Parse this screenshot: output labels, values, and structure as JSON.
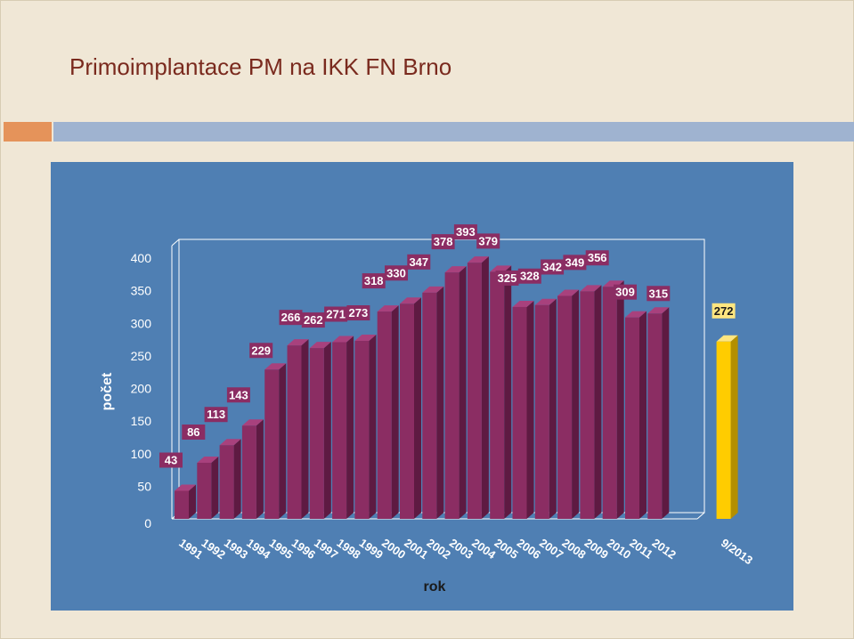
{
  "page": {
    "title": "Primoimplantace PM na IKK FN Brno"
  },
  "colors": {
    "bar_front": "#8b2d63",
    "bar_top": "#a8417d",
    "bar_side": "#5e1a42",
    "highlight_front": "#ffcc00",
    "highlight_top": "#ffe680",
    "highlight_side": "#b38f00",
    "plot_bg": "#4f7fb3",
    "label_bg": "#8b2d63",
    "highlight_label_bg": "#ffe680"
  },
  "chart_data": {
    "type": "bar",
    "title": "",
    "xlabel": "rok",
    "ylabel": "počet",
    "ylim": [
      0,
      400
    ],
    "yticks": [
      "0",
      "50",
      "100",
      "150",
      "200",
      "250",
      "300",
      "350",
      "400"
    ],
    "categories": [
      "1991",
      "1992",
      "1993",
      "1994",
      "1995",
      "1996",
      "1997",
      "1998",
      "1999",
      "2000",
      "2001",
      "2002",
      "2003",
      "2004",
      "2005",
      "2006",
      "2007",
      "2008",
      "2009",
      "2010",
      "2011",
      "2012",
      "9/2013"
    ],
    "values": [
      43,
      86,
      113,
      143,
      229,
      266,
      262,
      271,
      273,
      318,
      330,
      347,
      378,
      393,
      379,
      325,
      328,
      342,
      349,
      356,
      309,
      315,
      272
    ],
    "highlight_index": 22,
    "style": "3d"
  }
}
